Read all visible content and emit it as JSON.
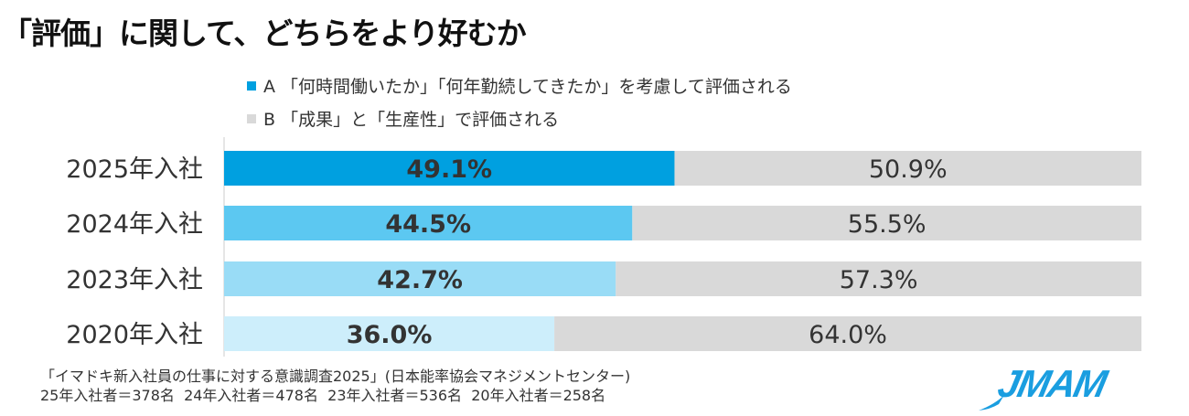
{
  "chart_data": {
    "type": "bar",
    "orientation": "horizontal",
    "stacked": true,
    "title": "「評価」に関して、どちらをより好むか",
    "categories": [
      "2025年入社",
      "2024年入社",
      "2023年入社",
      "2020年入社"
    ],
    "series": [
      {
        "name": "A 「何時間働いたか」「何年勤続してきたか」を考慮して評価される",
        "values": [
          49.1,
          44.5,
          42.7,
          36.0
        ],
        "labels": [
          "49.1%",
          "44.5%",
          "42.7%",
          "36.0%"
        ],
        "colors": [
          "#00a0e0",
          "#5cc8f1",
          "#99dcf6",
          "#cdeefb"
        ]
      },
      {
        "name": "B 「成果」と「生産性」で評価される",
        "values": [
          50.9,
          55.5,
          57.3,
          64.0
        ],
        "labels": [
          "50.9%",
          "55.5%",
          "57.3%",
          "64.0%"
        ],
        "color": "#d9d9d9"
      }
    ],
    "xlim": [
      0,
      100
    ],
    "grid": false,
    "legend_position": "top"
  },
  "legend": {
    "a_color": "#00a0e0",
    "b_color": "#d9d9d9"
  },
  "source": {
    "line1": "「イマドキ新入社員の仕事に対する意識調査2025」(日本能率協会マネジメントセンター)",
    "line2": "25年入社者＝378名  24年入社者＝478名  23年入社者＝536名  20年入社者＝258名"
  },
  "logo": {
    "text": "JMAM",
    "color": "#1a9ee0"
  }
}
